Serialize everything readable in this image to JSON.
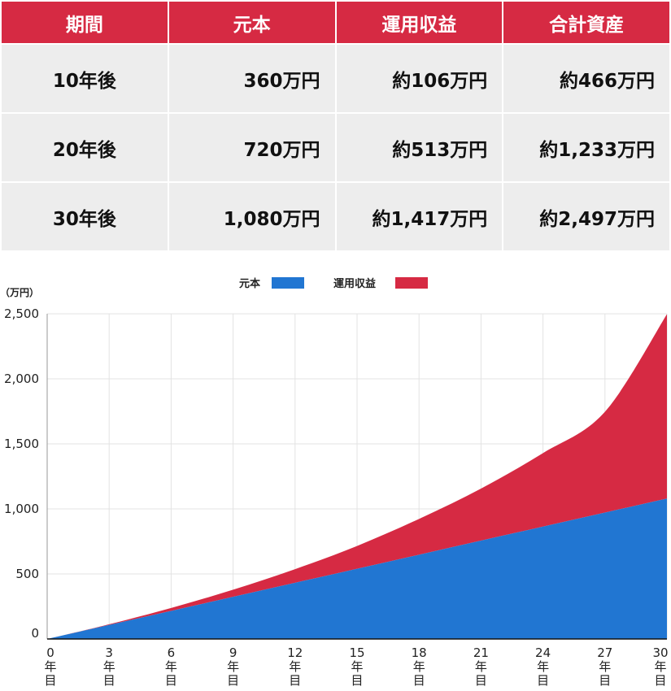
{
  "table": {
    "headers": [
      "期間",
      "元本",
      "運用収益",
      "合計資産"
    ],
    "rows": [
      {
        "period": "10年後",
        "principal": "360万円",
        "returns": "約106万円",
        "total": "約466万円"
      },
      {
        "period": "20年後",
        "principal": "720万円",
        "returns": "約513万円",
        "total": "約1,233万円"
      },
      {
        "period": "30年後",
        "principal": "1,080万円",
        "returns": "約1,417万円",
        "total": "約2,497万円"
      }
    ]
  },
  "colors": {
    "principal": "#2176d2",
    "returns": "#d62a43",
    "header_bg": "#d62a43",
    "cell_bg": "#ededed"
  },
  "chart_data": {
    "type": "area",
    "stacked": true,
    "y_unit": "（万円）",
    "x": [
      0,
      3,
      6,
      9,
      12,
      15,
      18,
      21,
      24,
      27,
      30
    ],
    "x_tick_labels": [
      "0",
      "3",
      "6",
      "9",
      "12",
      "15",
      "18",
      "21",
      "24",
      "27",
      "30"
    ],
    "x_tick_suffix": [
      "年",
      "目"
    ],
    "ylim": [
      0,
      2500
    ],
    "y_ticks": [
      0,
      500,
      1000,
      1500,
      2000,
      2500
    ],
    "y_tick_labels": [
      "0",
      "500",
      "1,000",
      "1,500",
      "2,000",
      "2,500"
    ],
    "grid": true,
    "legend_position": "top-center",
    "series": [
      {
        "name": "元本",
        "values": [
          0,
          108,
          216,
          324,
          432,
          540,
          648,
          756,
          864,
          972,
          1080
        ]
      },
      {
        "name": "運用収益",
        "values": [
          0,
          5,
          22,
          55,
          105,
          175,
          275,
          400,
          565,
          775,
          1417
        ]
      }
    ],
    "totals": [
      0,
      113,
      238,
      379,
      537,
      715,
      923,
      1156,
      1429,
      1747,
      2497
    ]
  }
}
